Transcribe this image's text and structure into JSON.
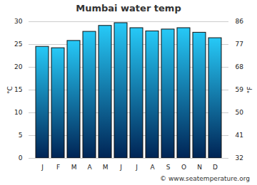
{
  "chart_data": {
    "type": "bar",
    "title": "Mumbai water temp",
    "categories": [
      "J",
      "F",
      "M",
      "A",
      "M",
      "J",
      "J",
      "A",
      "S",
      "O",
      "N",
      "D"
    ],
    "values": [
      24.5,
      24.2,
      25.8,
      27.8,
      29.1,
      29.7,
      28.6,
      27.9,
      28.3,
      28.6,
      27.6,
      26.4
    ],
    "color": "#26c9f7",
    "y_label": "°C",
    "ylim": [
      0,
      30
    ],
    "yticks": [
      0,
      5,
      10,
      15,
      20,
      25,
      30
    ],
    "y2_label": "°F",
    "y2lim": [
      32,
      86
    ],
    "y2ticks": [
      32,
      41,
      50,
      59,
      68,
      77,
      86
    ],
    "grid": true,
    "caption": "© www.seatemperature.org"
  }
}
